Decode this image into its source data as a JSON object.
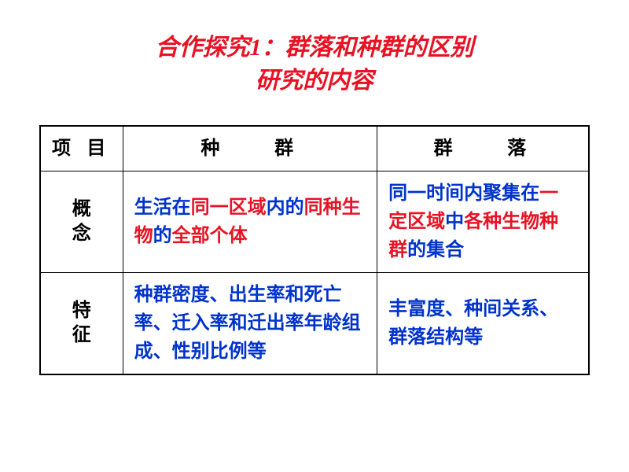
{
  "colors": {
    "red": "#e81224",
    "blue": "#0033cc",
    "black": "#000000",
    "background": "#ffffff",
    "border": "#000000"
  },
  "typography": {
    "title_fontsize": 30,
    "cell_fontsize": 24,
    "title_font": "STXingkai/KaiTi cursive",
    "body_font": "SimSun"
  },
  "title": {
    "line1": "合作探究1：群落和种群的区别",
    "line2": "研究的内容"
  },
  "table": {
    "headers": {
      "col1": "项 目",
      "col2": "种　　群",
      "col3": "群　　落"
    },
    "rows": [
      {
        "label_char1": "概",
        "label_char2": "念",
        "population": {
          "segments": [
            {
              "text": "生活在",
              "hl": false
            },
            {
              "text": "同一区域",
              "hl": true
            },
            {
              "text": "内的",
              "hl": false
            },
            {
              "text": "同种生物",
              "hl": true
            },
            {
              "text": "的",
              "hl": false
            },
            {
              "text": "全部个体",
              "hl": true
            }
          ]
        },
        "community": {
          "segments": [
            {
              "text": "同一时间内聚集在",
              "hl": false
            },
            {
              "text": "一定区域",
              "hl": true
            },
            {
              "text": "中",
              "hl": false
            },
            {
              "text": "各种生物种群",
              "hl": true
            },
            {
              "text": "的集合",
              "hl": false
            }
          ]
        }
      },
      {
        "label_char1": "特",
        "label_char2": "征",
        "population": {
          "segments": [
            {
              "text": "种群密度、出生率和死亡率、迁入率和迁出率年龄组成、性别比例等",
              "hl": false
            }
          ]
        },
        "community": {
          "segments": [
            {
              "text": "丰富度、种间关系、群落结构等",
              "hl": false
            }
          ]
        }
      }
    ]
  }
}
